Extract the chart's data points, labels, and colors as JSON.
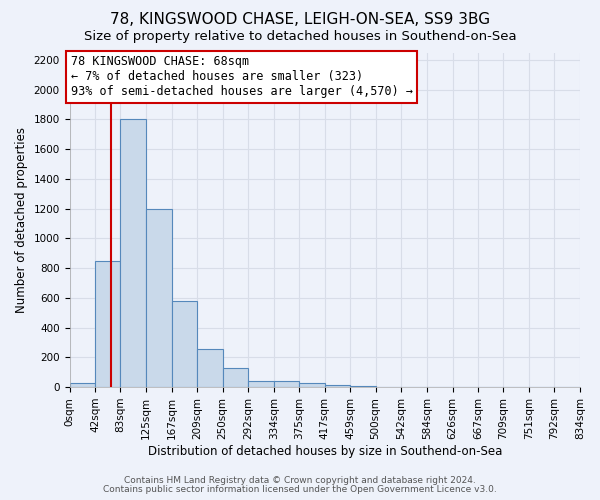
{
  "title": "78, KINGSWOOD CHASE, LEIGH-ON-SEA, SS9 3BG",
  "subtitle": "Size of property relative to detached houses in Southend-on-Sea",
  "xlabel": "Distribution of detached houses by size in Southend-on-Sea",
  "ylabel": "Number of detached properties",
  "footnote1": "Contains HM Land Registry data © Crown copyright and database right 2024.",
  "footnote2": "Contains public sector information licensed under the Open Government Licence v3.0.",
  "bin_edges": [
    0,
    42,
    83,
    125,
    167,
    209,
    250,
    292,
    334,
    375,
    417,
    459,
    500,
    542,
    584,
    626,
    667,
    709,
    751,
    792,
    834
  ],
  "bin_counts": [
    25,
    850,
    1800,
    1200,
    580,
    255,
    130,
    40,
    40,
    25,
    15,
    5,
    3,
    2,
    1,
    1,
    0,
    0,
    0,
    0
  ],
  "bar_facecolor": "#c9d9ea",
  "bar_edgecolor": "#5588bb",
  "property_size": 68,
  "redline_color": "#cc0000",
  "annotation_text": "78 KINGSWOOD CHASE: 68sqm\n← 7% of detached houses are smaller (323)\n93% of semi-detached houses are larger (4,570) →",
  "annotation_box_edgecolor": "#cc0000",
  "annotation_box_facecolor": "#ffffff",
  "ylim": [
    0,
    2250
  ],
  "yticks": [
    0,
    200,
    400,
    600,
    800,
    1000,
    1200,
    1400,
    1600,
    1800,
    2000,
    2200
  ],
  "bg_color": "#eef2fa",
  "grid_color": "#d8dde8",
  "title_fontsize": 11,
  "subtitle_fontsize": 9.5,
  "axis_label_fontsize": 8.5,
  "tick_fontsize": 7.5,
  "footnote_fontsize": 6.5
}
